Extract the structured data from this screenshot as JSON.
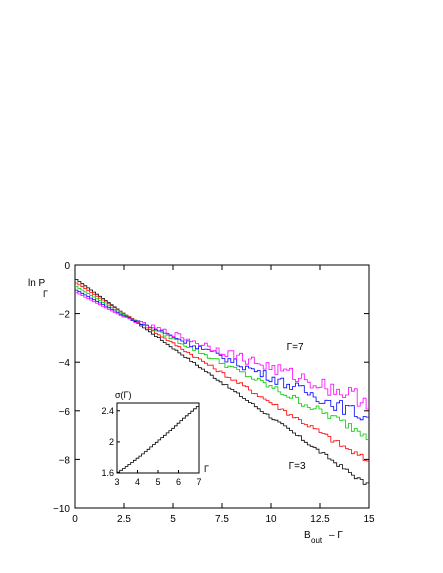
{
  "chart_data": [
    {
      "type": "line",
      "drawstyle": "steps",
      "ylabel": {
        "main": "ln P",
        "subscript": "Γ"
      },
      "xlabel": {
        "main": "B",
        "subscript": "out",
        "tail": "–  Γ"
      },
      "xlim": [
        0,
        15
      ],
      "ylim": [
        -10,
        0
      ],
      "xticks": [
        0,
        2.5,
        5,
        7.5,
        10,
        12.5,
        15
      ],
      "xtick_labels": [
        "0",
        "2.5",
        "5",
        "7.5",
        "10",
        "12.5",
        "15"
      ],
      "yticks": [
        0,
        -2,
        -4,
        -6,
        -8,
        -10
      ],
      "ytick_labels": [
        "0",
        "−2",
        "−4",
        "−6",
        "−8",
        "−10"
      ],
      "grid": false,
      "annotations": [
        {
          "text": "Γ=7",
          "x": 10.8,
          "y": -3.5
        },
        {
          "text": "Γ=3",
          "x": 10.9,
          "y": -8.4
        }
      ],
      "series": [
        {
          "color": "#000000",
          "start": -0.55,
          "pivot": -2.0,
          "end": -9.1,
          "noise": 0.08
        },
        {
          "color": "#ff0000",
          "start": -0.7,
          "pivot": -2.0,
          "end": -8.1,
          "noise": 0.12
        },
        {
          "color": "#00cc00",
          "start": -0.85,
          "pivot": -2.05,
          "end": -7.0,
          "noise": 0.18
        },
        {
          "color": "#0000ff",
          "start": -1.0,
          "pivot": -2.1,
          "end": -6.3,
          "noise": 0.25
        },
        {
          "color": "#ff00ff",
          "start": -1.1,
          "pivot": -2.15,
          "end": -5.6,
          "noise": 0.32
        }
      ]
    },
    {
      "type": "line",
      "drawstyle": "steps",
      "ylabel": "σ(Γ)",
      "xlabel": "Γ",
      "xlim": [
        3,
        7
      ],
      "ylim": [
        1.6,
        2.5
      ],
      "xticks": [
        3,
        4,
        5,
        6,
        7
      ],
      "xtick_labels": [
        "3",
        "4",
        "5",
        "6",
        "7"
      ],
      "yticks": [
        1.6,
        2,
        2.4
      ],
      "ytick_labels": [
        "1.6",
        "2",
        "2.4"
      ],
      "x": [
        3.0,
        3.4,
        3.8,
        4.2,
        4.6,
        5.0,
        5.4,
        5.8,
        6.2,
        6.6,
        7.0
      ],
      "y": [
        1.6,
        1.67,
        1.75,
        1.83,
        1.92,
        2.01,
        2.1,
        2.19,
        2.29,
        2.38,
        2.47
      ]
    }
  ]
}
